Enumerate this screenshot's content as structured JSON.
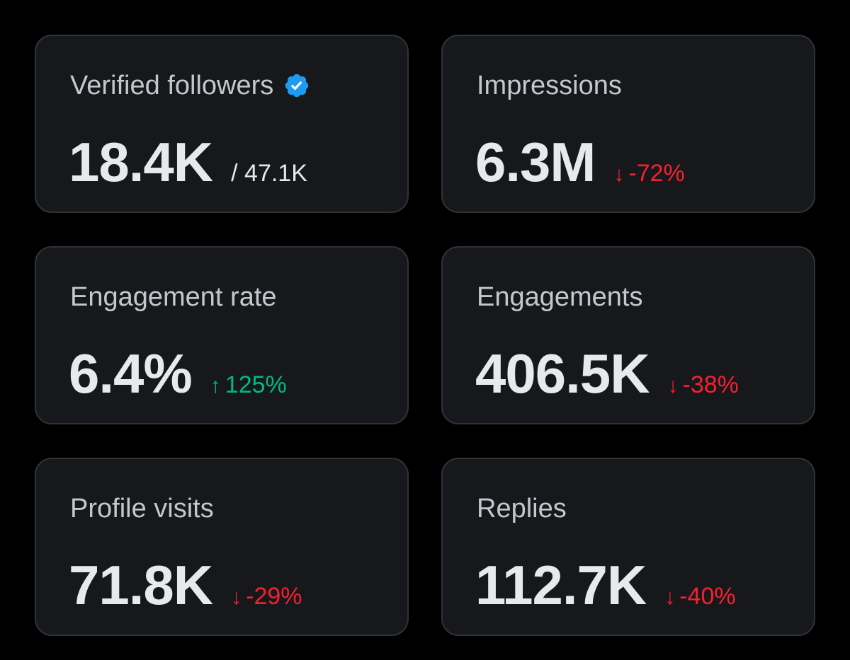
{
  "colors": {
    "background": "#000000",
    "card_bg": "#16181c",
    "card_border": "#2f3336",
    "label": "#c4c8cc",
    "value": "#e7e9ea",
    "negative": "#f4212e",
    "positive": "#00ba7c",
    "verified": "#1d9bf0"
  },
  "cards": [
    {
      "label": "Verified followers",
      "icon": "verified-badge-icon",
      "value": "18.4K",
      "sub": "/ 47.1K"
    },
    {
      "label": "Impressions",
      "value": "6.3M",
      "change": "-72%",
      "direction": "down",
      "arrow": "↓"
    },
    {
      "label": "Engagement rate",
      "value": "6.4%",
      "change": "125%",
      "direction": "up",
      "arrow": "↑"
    },
    {
      "label": "Engagements",
      "value": "406.5K",
      "change": "-38%",
      "direction": "down",
      "arrow": "↓"
    },
    {
      "label": "Profile visits",
      "value": "71.8K",
      "change": "-29%",
      "direction": "down",
      "arrow": "↓"
    },
    {
      "label": "Replies",
      "value": "112.7K",
      "change": "-40%",
      "direction": "down",
      "arrow": "↓"
    }
  ]
}
